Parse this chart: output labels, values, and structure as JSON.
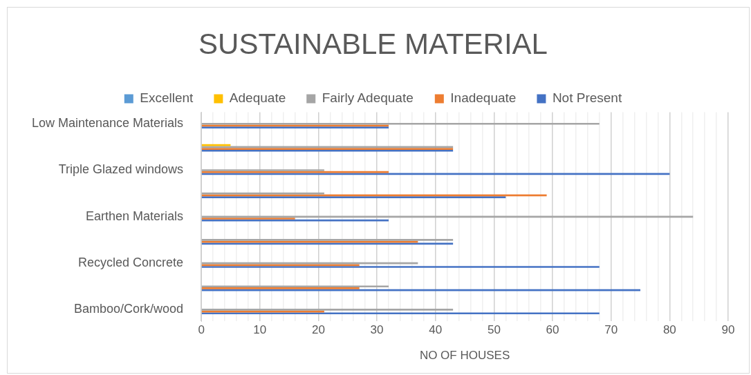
{
  "chart_data": {
    "type": "bar",
    "orientation": "horizontal",
    "title": "SUSTAINABLE MATERIAL",
    "xlabel": "NO OF HOUSES",
    "categories": [
      "Low Maintenance Materials",
      null,
      "Triple Glazed windows",
      null,
      "Earthen Materials",
      null,
      "Recycled Concrete",
      null,
      "Bamboo/Cork/wood"
    ],
    "series": [
      {
        "name": "Excellent",
        "color": "#5b9bd5",
        "values": [
          0,
          0,
          0,
          0,
          0,
          0,
          0,
          0,
          0
        ]
      },
      {
        "name": "Adequate",
        "color": "#ffc000",
        "values": [
          0,
          5,
          0,
          0,
          0,
          0,
          0,
          0,
          0
        ]
      },
      {
        "name": "Fairly Adequate",
        "color": "#a5a5a5",
        "values": [
          68,
          43,
          21,
          21,
          84,
          43,
          37,
          32,
          43
        ]
      },
      {
        "name": "Inadequate",
        "color": "#ed7d31",
        "values": [
          32,
          43,
          32,
          59,
          16,
          37,
          27,
          27,
          21
        ]
      },
      {
        "name": "Not Present",
        "color": "#4472c4",
        "values": [
          32,
          43,
          80,
          52,
          32,
          43,
          68,
          75,
          68
        ]
      }
    ],
    "xlim": [
      0,
      90
    ],
    "xticks": [
      0,
      {
        "value": 2,
        "label": null
      },
      {
        "value": 4,
        "label": null
      },
      {
        "value": 6,
        "label": null
      },
      {
        "value": 8,
        "label": null
      },
      10,
      {
        "value": 12,
        "label": null
      },
      {
        "value": 14,
        "label": null
      },
      {
        "value": 16,
        "label": null
      },
      {
        "value": 18,
        "label": null
      },
      20,
      {
        "value": 22,
        "label": null
      },
      {
        "value": 24,
        "label": null
      },
      {
        "value": 26,
        "label": null
      },
      {
        "value": 28,
        "label": null
      },
      30,
      {
        "value": 32,
        "label": null
      },
      {
        "value": 34,
        "label": null
      },
      {
        "value": 36,
        "label": null
      },
      {
        "value": 38,
        "label": null
      },
      40,
      {
        "value": 42,
        "label": null
      },
      {
        "value": 44,
        "label": null
      },
      {
        "value": 46,
        "label": null
      },
      {
        "value": 48,
        "label": null
      },
      50,
      {
        "value": 52,
        "label": null
      },
      {
        "value": 54,
        "label": null
      },
      {
        "value": 56,
        "label": null
      },
      {
        "value": 58,
        "label": null
      },
      60,
      {
        "value": 62,
        "label": null
      },
      {
        "value": 64,
        "label": null
      },
      {
        "value": 66,
        "label": null
      },
      {
        "value": 68,
        "label": null
      },
      70,
      {
        "value": 72,
        "label": null
      },
      {
        "value": 74,
        "label": null
      },
      {
        "value": 76,
        "label": null
      },
      {
        "value": 78,
        "label": null
      },
      80,
      {
        "value": 82,
        "label": null
      },
      {
        "value": 84,
        "label": null
      },
      {
        "value": 86,
        "label": null
      },
      {
        "value": 88,
        "label": null
      },
      90
    ],
    "grid": "x",
    "legend": "top"
  }
}
